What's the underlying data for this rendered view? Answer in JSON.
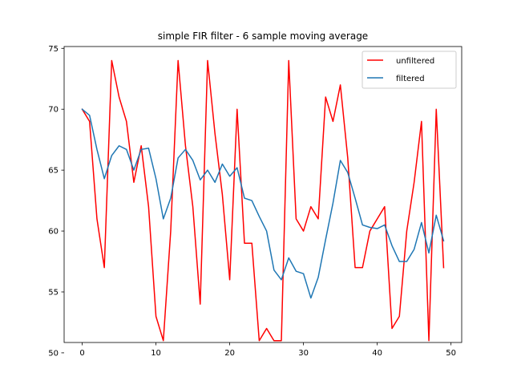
{
  "chart_data": {
    "type": "line",
    "title": "simple FIR filter - 6 sample moving average",
    "xlabel": "",
    "ylabel": "",
    "xlim": [
      -2.45,
      51.45
    ],
    "ylim": [
      50.85,
      75.15
    ],
    "xticks": [
      0,
      10,
      20,
      30,
      40,
      50
    ],
    "yticks": [
      50,
      55,
      60,
      65,
      70,
      75
    ],
    "grid": false,
    "legend_position": "upper right",
    "series": [
      {
        "name": "unfiltered",
        "color": "#ff0000",
        "x": [
          0,
          1,
          2,
          3,
          4,
          5,
          6,
          7,
          8,
          9,
          10,
          11,
          12,
          13,
          14,
          15,
          16,
          17,
          18,
          19,
          20,
          21,
          22,
          23,
          24,
          25,
          26,
          27,
          28,
          29,
          30,
          31,
          32,
          33,
          34,
          35,
          36,
          37,
          38,
          39,
          40,
          41,
          42,
          43,
          44,
          45,
          46,
          47,
          48,
          49
        ],
        "values": [
          70,
          69,
          61,
          57,
          74,
          71,
          69,
          64,
          67,
          62,
          53,
          51,
          60,
          74,
          67,
          62,
          54,
          74,
          68,
          63,
          56,
          70,
          59,
          59,
          51,
          52,
          51,
          51,
          74,
          61,
          60,
          62,
          61,
          71,
          69,
          72,
          66,
          57,
          57,
          60,
          61,
          62,
          52,
          53,
          60,
          64,
          69,
          51,
          70,
          57
        ]
      },
      {
        "name": "filtered",
        "color": "#1f77b4",
        "x": [
          0,
          1,
          2,
          3,
          4,
          5,
          6,
          7,
          8,
          9,
          10,
          11,
          12,
          13,
          14,
          15,
          16,
          17,
          18,
          19,
          20,
          21,
          22,
          23,
          24,
          25,
          26,
          27,
          28,
          29,
          30,
          31,
          32,
          33,
          34,
          35,
          36,
          37,
          38,
          39,
          40,
          41,
          42,
          43,
          44,
          45,
          46,
          47,
          48,
          49
        ],
        "values": [
          70.0,
          69.5,
          66.7,
          64.3,
          66.2,
          67.0,
          66.7,
          65.0,
          66.7,
          66.8,
          64.3,
          61.0,
          62.7,
          66.0,
          66.7,
          65.8,
          64.2,
          65.0,
          64.0,
          65.5,
          64.5,
          65.2,
          62.7,
          62.5,
          61.2,
          60.0,
          56.8,
          56.0,
          57.8,
          56.7,
          56.5,
          54.5,
          56.2,
          59.3,
          62.3,
          65.8,
          64.8,
          62.7,
          60.5,
          60.3,
          60.2,
          60.5,
          58.8,
          57.5,
          57.5,
          58.5,
          60.7,
          58.2,
          61.3,
          59.2
        ]
      }
    ]
  }
}
